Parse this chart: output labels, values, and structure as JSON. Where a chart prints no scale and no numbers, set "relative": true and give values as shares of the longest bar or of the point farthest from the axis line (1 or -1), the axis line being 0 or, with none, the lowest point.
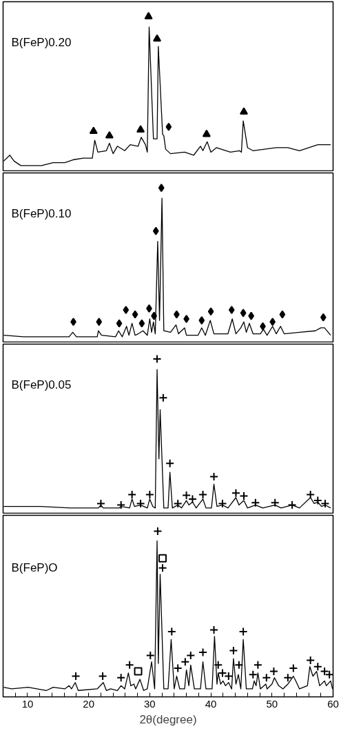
{
  "chart_data": [
    {
      "type": "line",
      "title": "B(FeP)0.20",
      "relative": true,
      "xlim": [
        6,
        60
      ],
      "tick_labels": false,
      "series": [
        {
          "type": "line",
          "color": "#000000",
          "marker": "none",
          "x": [
            6.1,
            7.1,
            7.8,
            8.9,
            10.4,
            12.3,
            14.2,
            16.1,
            17.6,
            19.1,
            20.6,
            21.0,
            21.5,
            22.9,
            23.4,
            24.0,
            24.7,
            25.9,
            26.8,
            28.1,
            28.6,
            29.3,
            29.6,
            29.9,
            30.6,
            31.2,
            31.4,
            32.1,
            32.3,
            32.6,
            33.4,
            35.7,
            37.2,
            38.3,
            38.7,
            39.4,
            40.0,
            40.9,
            43.2,
            44.7,
            45.0,
            45.3,
            46.0,
            46.9,
            50.7,
            52.6,
            54.5,
            57.5,
            58.6,
            59.6
          ],
          "values": [
            0.03,
            0.07,
            0.03,
            0.0,
            0.0,
            0.0,
            0.02,
            0.02,
            0.04,
            0.05,
            0.05,
            0.17,
            0.09,
            0.1,
            0.15,
            0.08,
            0.13,
            0.1,
            0.14,
            0.13,
            0.19,
            0.14,
            0.09,
            0.93,
            0.18,
            0.18,
            0.8,
            0.21,
            0.2,
            0.11,
            0.08,
            0.09,
            0.07,
            0.13,
            0.1,
            0.16,
            0.09,
            0.12,
            0.09,
            0.1,
            0.09,
            0.3,
            0.12,
            0.1,
            0.12,
            0.12,
            0.1,
            0.14,
            0.14,
            0.14
          ]
        },
        {
          "type": "scatter",
          "color": "#000000",
          "marker": "triangle",
          "x": [
            20.8,
            23.4,
            28.5,
            29.8,
            31.2,
            39.3,
            45.4
          ],
          "values": [
            0.23,
            0.2,
            0.24,
            1.0,
            0.85,
            0.21,
            0.36
          ]
        },
        {
          "type": "scatter",
          "color": "#000000",
          "marker": "diamond",
          "x": [
            33.1
          ],
          "values": [
            0.26
          ]
        }
      ]
    },
    {
      "type": "line",
      "title": "B(FeP)0.10",
      "relative": true,
      "xlim": [
        6,
        60
      ],
      "tick_labels": false,
      "series": [
        {
          "type": "line",
          "color": "#000000",
          "marker": "none",
          "x": [
            6.1,
            9.3,
            13.1,
            16.8,
            17.4,
            18.0,
            21.4,
            21.6,
            22.1,
            24.4,
            24.9,
            25.5,
            26.2,
            26.6,
            27.1,
            27.6,
            28.1,
            28.9,
            29.6,
            30.0,
            30.3,
            30.6,
            30.9,
            31.3,
            31.6,
            32.0,
            32.3,
            33.4,
            34.3,
            34.7,
            35.7,
            36.0,
            37.9,
            38.5,
            39.1,
            39.9,
            40.5,
            42.8,
            43.5,
            44.1,
            44.9,
            45.4,
            45.8,
            46.3,
            46.9,
            48.1,
            48.6,
            49.2,
            50.1,
            50.7,
            51.4,
            52.0,
            54.5,
            57.1,
            58.0,
            58.6,
            59.6
          ],
          "values": [
            0.01,
            0.0,
            0.0,
            0.0,
            0.03,
            0.0,
            0.0,
            0.04,
            0.01,
            0.0,
            0.04,
            0.0,
            0.07,
            0.01,
            0.09,
            0.01,
            0.02,
            0.04,
            0.01,
            0.12,
            0.03,
            0.1,
            0.02,
            0.64,
            0.11,
            0.93,
            0.04,
            0.03,
            0.08,
            0.02,
            0.06,
            0.01,
            0.01,
            0.06,
            0.01,
            0.11,
            0.02,
            0.02,
            0.12,
            0.02,
            0.06,
            0.1,
            0.03,
            0.09,
            0.02,
            0.02,
            0.05,
            0.01,
            0.07,
            0.02,
            0.07,
            0.02,
            0.03,
            0.04,
            0.06,
            0.06,
            0.01
          ]
        },
        {
          "type": "scatter",
          "color": "#000000",
          "marker": "diamond",
          "x": [
            17.5,
            21.7,
            25.0,
            26.1,
            27.6,
            28.7,
            29.9,
            30.7,
            31.0,
            31.9,
            34.4,
            36.0,
            38.5,
            40.0,
            43.4,
            45.3,
            46.6,
            48.5,
            50.1,
            51.7,
            58.4
          ],
          "values": [
            0.1,
            0.1,
            0.09,
            0.18,
            0.15,
            0.09,
            0.19,
            0.14,
            0.71,
            1.0,
            0.15,
            0.12,
            0.11,
            0.17,
            0.18,
            0.16,
            0.14,
            0.07,
            0.1,
            0.15,
            0.13
          ]
        }
      ]
    },
    {
      "type": "line",
      "title": "B(FeP)0.05",
      "relative": true,
      "xlim": [
        6,
        60
      ],
      "tick_labels": false,
      "series": [
        {
          "type": "line",
          "color": "#000000",
          "marker": "none",
          "x": [
            6.1,
            12,
            17,
            21.6,
            22.0,
            22.4,
            25.0,
            25.3,
            26.7,
            27.1,
            27.5,
            28.5,
            29.6,
            30.0,
            30.5,
            30.9,
            31.2,
            31.5,
            31.7,
            32.3,
            33.0,
            33.3,
            33.7,
            34.6,
            35.2,
            36.0,
            36.4,
            37.0,
            37.6,
            38.7,
            39.2,
            40.1,
            40.5,
            41.0,
            41.9,
            42.8,
            44.1,
            44.6,
            45.4,
            46.0,
            47.3,
            48.5,
            50.5,
            51.5,
            53.3,
            54.5,
            56.3,
            56.9,
            57.5,
            58.1,
            58.7,
            59.6
          ],
          "values": [
            0.01,
            0.01,
            0.0,
            0.0,
            0.02,
            0.0,
            0.0,
            0.01,
            0.0,
            0.06,
            0.01,
            0.02,
            0.0,
            0.06,
            0.01,
            0.0,
            0.93,
            0.33,
            0.66,
            0.0,
            0.0,
            0.24,
            0.0,
            0.02,
            0.0,
            0.05,
            0.02,
            0.04,
            0.0,
            0.06,
            0.0,
            0.0,
            0.16,
            0.01,
            0.02,
            0.0,
            0.07,
            0.02,
            0.05,
            0.0,
            0.02,
            0.0,
            0.02,
            0.0,
            0.02,
            0.0,
            0.07,
            0.03,
            0.04,
            0.01,
            0.02,
            0.0
          ]
        },
        {
          "type": "scatter",
          "color": "#000000",
          "marker": "cross",
          "x": [
            22.0,
            25.3,
            27.1,
            28.5,
            30.0,
            31.2,
            32.2,
            33.3,
            34.6,
            36.0,
            37.0,
            38.7,
            40.5,
            41.9,
            44.1,
            45.4,
            47.3,
            50.5,
            53.3,
            56.3,
            57.5,
            58.7
          ],
          "values": [
            0.03,
            0.02,
            0.09,
            0.03,
            0.09,
            1.0,
            0.74,
            0.3,
            0.03,
            0.085,
            0.06,
            0.09,
            0.21,
            0.03,
            0.1,
            0.08,
            0.035,
            0.035,
            0.02,
            0.09,
            0.05,
            0.03
          ]
        }
      ]
    },
    {
      "type": "line",
      "title": "B(FeP)O",
      "relative": true,
      "xlim": [
        6,
        60
      ],
      "xlabel": "2θ(degree)",
      "tick_labels": "x",
      "xticks": [
        {
          "value": 8,
          "label": null
        },
        10,
        {
          "value": 12,
          "label": null
        },
        {
          "value": 14,
          "label": null
        },
        {
          "value": 16,
          "label": null
        },
        {
          "value": 18,
          "label": null
        },
        20,
        {
          "value": 22,
          "label": null
        },
        {
          "value": 24,
          "label": null
        },
        {
          "value": 26,
          "label": null
        },
        {
          "value": 28,
          "label": null
        },
        30,
        {
          "value": 32,
          "label": null
        },
        {
          "value": 34,
          "label": null
        },
        {
          "value": 36,
          "label": null
        },
        {
          "value": 38,
          "label": null
        },
        40,
        {
          "value": 42,
          "label": null
        },
        {
          "value": 44,
          "label": null
        },
        {
          "value": 46,
          "label": null
        },
        {
          "value": 48,
          "label": null
        },
        50,
        {
          "value": 52,
          "label": null
        },
        {
          "value": 54,
          "label": null
        },
        {
          "value": 56,
          "label": null
        },
        {
          "value": 58,
          "label": null
        },
        60
      ],
      "series": [
        {
          "type": "line",
          "color": "#000000",
          "marker": "none",
          "x": [
            6.1,
            7.4,
            10.1,
            13.1,
            14.2,
            16.1,
            16.8,
            17.2,
            17.8,
            18.3,
            21.4,
            22.4,
            22.9,
            23.6,
            24.7,
            25.3,
            25.9,
            26.5,
            26.9,
            27.4,
            27.7,
            28.4,
            29.0,
            29.6,
            30.3,
            30.8,
            31.2,
            31.4,
            31.7,
            32.3,
            33.0,
            33.5,
            34.0,
            34.4,
            34.9,
            35.7,
            36.0,
            36.4,
            36.7,
            37.3,
            38.3,
            38.7,
            39.2,
            40.2,
            40.6,
            41.0,
            41.2,
            41.6,
            42.0,
            42.4,
            42.9,
            43.4,
            43.7,
            44.1,
            44.5,
            44.9,
            45.3,
            45.8,
            46.8,
            47.1,
            47.4,
            47.7,
            48.1,
            49.0,
            49.2,
            50.0,
            50.4,
            51.1,
            51.8,
            52.6,
            53.5,
            53.9,
            54.5,
            55.8,
            56.2,
            56.7,
            57.3,
            57.8,
            58.6,
            58.9,
            59.6,
            59.9
          ],
          "values": [
            0.02,
            0.01,
            0.02,
            0.0,
            0.02,
            0.01,
            0.03,
            0.01,
            0.05,
            0.0,
            0.01,
            0.05,
            0.0,
            0.01,
            0.0,
            0.03,
            0.01,
            0.11,
            0.03,
            0.04,
            0.01,
            0.07,
            0.0,
            0.01,
            0.18,
            0.01,
            0.94,
            0.17,
            0.73,
            0.01,
            0.01,
            0.32,
            0.01,
            0.09,
            0.01,
            0.01,
            0.13,
            0.03,
            0.16,
            0.01,
            0.01,
            0.18,
            0.01,
            0.01,
            0.34,
            0.04,
            0.11,
            0.04,
            0.06,
            0.03,
            0.05,
            0.01,
            0.2,
            0.04,
            0.1,
            0.01,
            0.32,
            0.01,
            0.01,
            0.06,
            0.03,
            0.11,
            0.01,
            0.04,
            0.01,
            0.04,
            0.08,
            0.03,
            0.01,
            0.04,
            0.09,
            0.06,
            0.01,
            0.03,
            0.15,
            0.09,
            0.12,
            0.03,
            0.06,
            0.03,
            0.06,
            0.01
          ]
        },
        {
          "type": "scatter",
          "color": "#000000",
          "marker": "cross",
          "x": [
            17.9,
            22.3,
            25.3,
            26.7,
            30.1,
            31.3,
            32.1,
            33.6,
            34.6,
            35.8,
            36.7,
            38.7,
            40.5,
            41.2,
            41.9,
            42.9,
            43.7,
            44.6,
            45.3,
            46.9,
            47.7,
            49.1,
            50.3,
            52.6,
            53.5,
            56.3,
            57.5,
            58.6,
            59.4
          ],
          "values": [
            0.09,
            0.09,
            0.08,
            0.16,
            0.22,
            1.0,
            0.77,
            0.37,
            0.14,
            0.18,
            0.22,
            0.24,
            0.38,
            0.16,
            0.11,
            0.09,
            0.25,
            0.16,
            0.37,
            0.1,
            0.16,
            0.08,
            0.12,
            0.08,
            0.14,
            0.19,
            0.15,
            0.12,
            0.1
          ]
        },
        {
          "type": "scatter",
          "color": "#000000",
          "marker": "square",
          "x": [
            28.1,
            32.1
          ],
          "values": [
            0.12,
            0.83
          ]
        }
      ]
    }
  ]
}
